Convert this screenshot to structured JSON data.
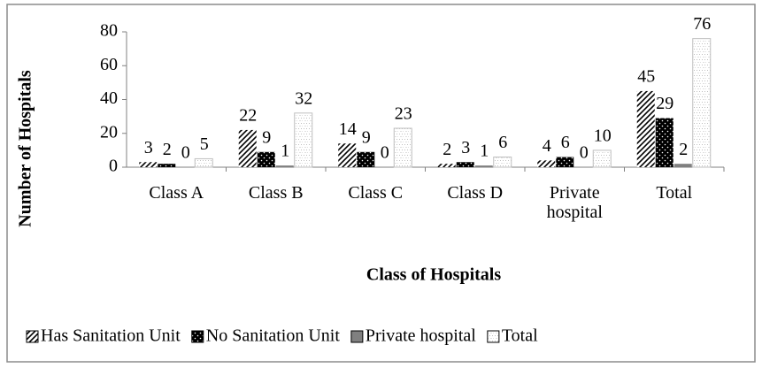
{
  "chart_data": {
    "type": "bar",
    "categories": [
      "Class A",
      "Class B",
      "Class C",
      "Class D",
      "Private hospital",
      "Total"
    ],
    "series": [
      {
        "name": "Has Sanitation Unit",
        "color": "#000000",
        "pattern": "diagonal",
        "values": [
          3,
          22,
          14,
          2,
          4,
          45
        ]
      },
      {
        "name": "No Sanitation Unit",
        "color": "#000000",
        "pattern": "dots",
        "values": [
          2,
          9,
          9,
          3,
          6,
          29
        ]
      },
      {
        "name": "Private hospital",
        "color": "#808080",
        "pattern": "solid",
        "values": [
          0,
          1,
          0,
          1,
          0,
          2
        ]
      },
      {
        "name": "Total",
        "color": "#bfbfbf",
        "pattern": "fine-dots",
        "values": [
          5,
          32,
          23,
          6,
          10,
          76
        ]
      }
    ],
    "x_label": "Class of Hospitals",
    "y_label": "Number of Hospitals",
    "ylim": [
      0,
      80
    ],
    "yticks": [
      0,
      20,
      40,
      60,
      80
    ],
    "grid": false,
    "legend": "bottom"
  }
}
